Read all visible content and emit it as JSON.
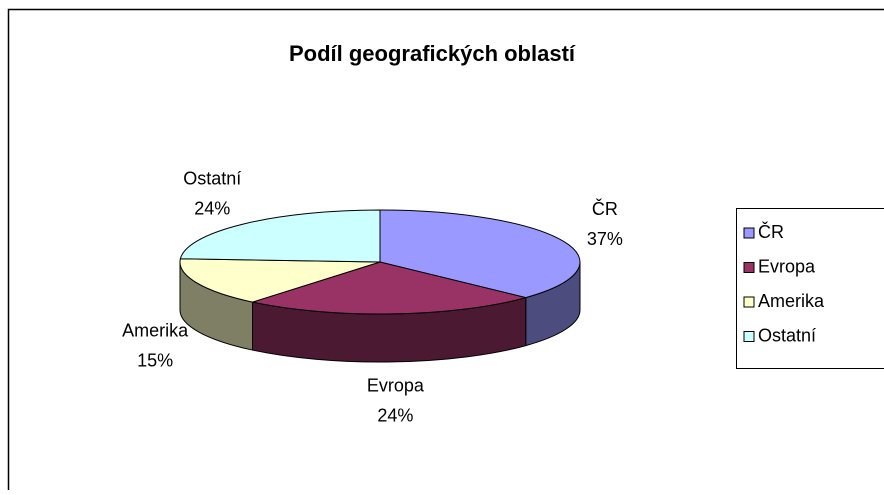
{
  "chart_data": {
    "type": "pie3d",
    "title": "Podíl geografických oblastí",
    "categories": [
      "ČR",
      "Evropa",
      "Amerika",
      "Ostatní"
    ],
    "values": [
      37,
      24,
      15,
      24
    ],
    "value_labels": [
      "37%",
      "24%",
      "15%",
      "24%"
    ],
    "colors": [
      "#9999ff",
      "#993366",
      "#ffffcc",
      "#ccffff"
    ],
    "legend": "right"
  }
}
